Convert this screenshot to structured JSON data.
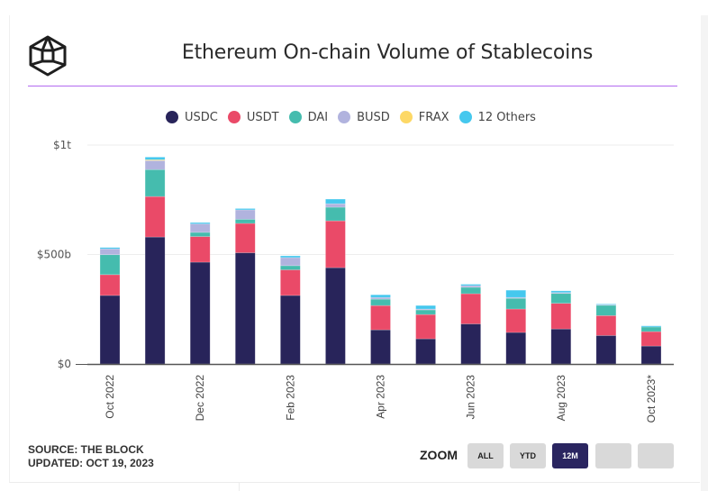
{
  "header": {
    "logo_icon": "the-block-hexagon-logo",
    "title": "Ethereum On-chain Volume of Stablecoins"
  },
  "footer": {
    "source": "SOURCE: THE BLOCK",
    "updated": "UPDATED: OCT 19, 2023",
    "zoom_label": "ZOOM",
    "zoom_buttons": [
      {
        "label": "ALL",
        "active": false
      },
      {
        "label": "YTD",
        "active": false
      },
      {
        "label": "12M",
        "active": true
      },
      {
        "label": "",
        "active": false
      },
      {
        "label": "",
        "active": false
      }
    ]
  },
  "chart_data": {
    "type": "bar",
    "stacked": true,
    "title": "Ethereum On-chain Volume of Stablecoins",
    "xlabel": "",
    "ylabel": "",
    "unit": "billions USD",
    "ylim": [
      0,
      1000
    ],
    "yticks": [
      {
        "value": 0,
        "label": "$0"
      },
      {
        "value": 500,
        "label": "$500b"
      },
      {
        "value": 1000,
        "label": "$1t"
      }
    ],
    "grid": true,
    "legend_position": "top-center",
    "categories": [
      "Oct 2022",
      "Nov 2022",
      "Dec 2022",
      "Jan 2023",
      "Feb 2023",
      "Mar 2023",
      "Apr 2023",
      "May 2023",
      "Jun 2023",
      "Jul 2023",
      "Aug 2023",
      "Sep 2023",
      "Oct 2023*"
    ],
    "xtick_labels": [
      "Oct 2022",
      "",
      "Dec 2022",
      "",
      "Feb 2023",
      "",
      "Apr 2023",
      "",
      "Jun 2023",
      "",
      "Aug 2023",
      "",
      "Oct 2023*"
    ],
    "series": [
      {
        "name": "USDC",
        "color": "#28245a",
        "values": [
          313,
          580,
          465,
          508,
          313,
          440,
          156,
          115,
          183,
          144,
          160,
          130,
          82
        ]
      },
      {
        "name": "USDT",
        "color": "#ea4a68",
        "values": [
          95,
          185,
          117,
          134,
          117,
          214,
          111,
          111,
          138,
          107,
          117,
          91,
          66
        ]
      },
      {
        "name": "DAI",
        "color": "#45bcae",
        "values": [
          91,
          123,
          19,
          19,
          19,
          62,
          29,
          21,
          29,
          49,
          45,
          47,
          21
        ]
      },
      {
        "name": "BUSD",
        "color": "#b1b3de",
        "values": [
          27,
          41,
          39,
          43,
          37,
          16,
          8,
          4,
          8,
          4,
          4,
          4,
          0
        ]
      },
      {
        "name": "FRAX",
        "color": "#fdd866",
        "values": [
          0,
          4,
          0,
          0,
          0,
          0,
          0,
          0,
          0,
          0,
          0,
          0,
          0
        ]
      },
      {
        "name": "12 Others",
        "color": "#45c8ee",
        "values": [
          6,
          12,
          6,
          6,
          8,
          21,
          12,
          16,
          6,
          33,
          8,
          2,
          5
        ]
      }
    ]
  }
}
